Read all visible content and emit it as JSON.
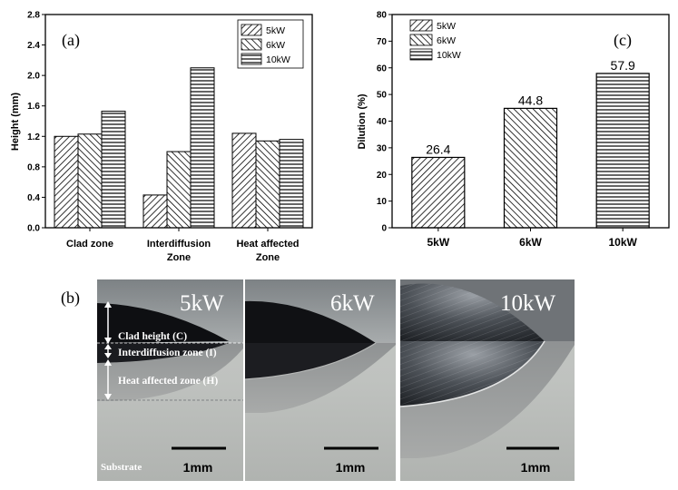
{
  "chart_data": [
    {
      "panel": "(a)",
      "type": "bar",
      "ylabel": "Height (mm)",
      "ylim": [
        0.0,
        2.8
      ],
      "yticks": [
        "0.0",
        "0.4",
        "0.8",
        "1.2",
        "1.6",
        "2.0",
        "2.4",
        "2.8"
      ],
      "categories": [
        [
          "Clad zone"
        ],
        [
          "Interdiffusion",
          "Zone"
        ],
        [
          "Heat affected",
          "Zone"
        ]
      ],
      "series": [
        {
          "name": "5kW",
          "values": [
            1.2,
            0.43,
            1.24
          ],
          "pattern": "diag-up"
        },
        {
          "name": "6kW",
          "values": [
            1.23,
            1.0,
            1.14
          ],
          "pattern": "diag-down"
        },
        {
          "name": "10kW",
          "values": [
            1.53,
            2.1,
            1.16
          ],
          "pattern": "horizontal"
        }
      ],
      "legend_position": "top-right"
    },
    {
      "panel": "(c)",
      "type": "bar",
      "ylabel": "Dilution (%)",
      "ylim": [
        0,
        80
      ],
      "yticks": [
        "0",
        "10",
        "20",
        "30",
        "40",
        "50",
        "60",
        "70",
        "80"
      ],
      "categories": [
        "5kW",
        "6kW",
        "10kW"
      ],
      "values": [
        26.4,
        44.8,
        57.9
      ],
      "value_labels": [
        "26.4",
        "44.8",
        "57.9"
      ],
      "patterns": [
        "diag-up",
        "diag-down",
        "horizontal"
      ],
      "legend": [
        "5kW",
        "6kW",
        "10kW"
      ],
      "legend_position": "top-left"
    }
  ],
  "photos": {
    "panel": "(b)",
    "items": [
      {
        "title": "5kW",
        "scale_label": "1mm"
      },
      {
        "title": "6kW",
        "scale_label": "1mm"
      },
      {
        "title": "10kW",
        "scale_label": "1mm"
      }
    ],
    "annotations": [
      "Clad height (C)",
      "Interdiffusion zone (I)",
      "Heat affected zone (H)"
    ],
    "substrate_label": "Substrate"
  }
}
